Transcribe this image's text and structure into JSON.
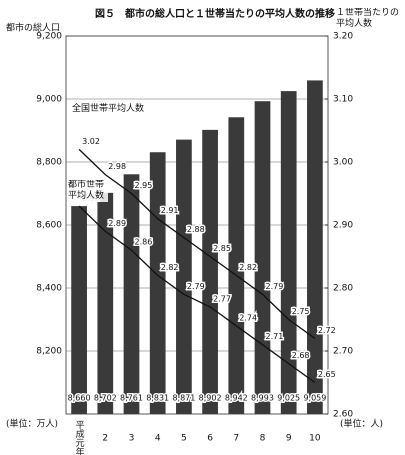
{
  "chart_data": {
    "type": "bar",
    "title": "図５　都市の総人口と１世帯当たりの平均人数の推移",
    "ylabel": "都市の総人口",
    "y2label": "１世帯当たりの平均人数",
    "yunit": "(単位：万人)",
    "y2unit": "(単位：人)",
    "categories": [
      "平成元年",
      "2",
      "3",
      "4",
      "5",
      "6",
      "7",
      "8",
      "9",
      "10"
    ],
    "ylim": [
      8000,
      9200
    ],
    "yticks": [
      {
        "value": 8200,
        "label": "8,200"
      },
      {
        "value": 8400,
        "label": "8,400"
      },
      {
        "value": 8600,
        "label": "8,600"
      },
      {
        "value": 8800,
        "label": "8,800"
      },
      {
        "value": 9000,
        "label": "9,000"
      },
      {
        "value": 9200,
        "label": "9,200"
      }
    ],
    "y2lim": [
      2.6,
      3.2
    ],
    "y2ticks": [
      {
        "value": 2.6,
        "label": "2.60"
      },
      {
        "value": 2.7,
        "label": "2.70"
      },
      {
        "value": 2.8,
        "label": "2.80"
      },
      {
        "value": 2.9,
        "label": "2.90"
      },
      {
        "value": 3.0,
        "label": "3.00"
      },
      {
        "value": 3.1,
        "label": "3.10"
      },
      {
        "value": 3.2,
        "label": "3.20"
      }
    ],
    "grid": true,
    "series": [
      {
        "type": "bar",
        "color": "#3a3a3a",
        "values": [
          8660,
          8702,
          8761,
          8831,
          8871,
          8902,
          8942,
          8993,
          9025,
          9059
        ],
        "value_labels": [
          "8,660",
          "8,702",
          "8,761",
          "8,831",
          "8,871",
          "8,902",
          "8,942",
          "8,993",
          "9,025",
          "9,059"
        ]
      },
      {
        "type": "line",
        "axis": "y2",
        "name": "全国世帯平均人数",
        "color": "#111111",
        "values": [
          3.02,
          2.98,
          2.95,
          2.91,
          2.88,
          2.85,
          2.82,
          2.79,
          2.75,
          2.72
        ]
      },
      {
        "type": "line",
        "axis": "y2",
        "name": "都市世帯平均人数",
        "color": "#111111",
        "values": [
          2.93,
          2.89,
          2.86,
          2.82,
          2.79,
          2.77,
          2.74,
          2.71,
          2.68,
          2.65
        ]
      }
    ]
  }
}
